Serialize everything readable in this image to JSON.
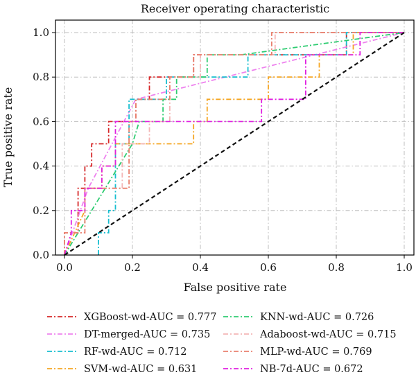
{
  "chart_data": {
    "type": "line",
    "title": "Receiver operating characteristic",
    "xlabel": "False positive rate",
    "ylabel": "True positive rate",
    "xlim": [
      0.0,
      1.0
    ],
    "ylim": [
      0.0,
      1.0
    ],
    "xticks": [
      "0.0",
      "0.2",
      "0.4",
      "0.6",
      "0.8",
      "1.0"
    ],
    "yticks": [
      "0.0",
      "0.2",
      "0.4",
      "0.6",
      "0.8",
      "1.0"
    ],
    "grid": true,
    "legend_position": "below",
    "reference_line": {
      "x": [
        0,
        1
      ],
      "y": [
        0,
        1
      ],
      "color": "#111111",
      "style": "dashed"
    },
    "series": [
      {
        "name": "XGBoost-wd-AUC = 0.777",
        "color": "#d62728",
        "x": [
          0,
          0,
          0.04,
          0.04,
          0.06,
          0.06,
          0.08,
          0.08,
          0.13,
          0.13,
          0.21,
          0.21,
          0.25,
          0.25,
          0.38,
          0.38,
          0.58,
          0.58,
          0.71,
          0.71,
          0.83,
          0.83,
          0.92,
          0.92,
          1.0
        ],
        "y": [
          0,
          0.1,
          0.1,
          0.3,
          0.3,
          0.4,
          0.4,
          0.5,
          0.5,
          0.6,
          0.6,
          0.7,
          0.7,
          0.8,
          0.8,
          0.9,
          0.9,
          0.9,
          0.9,
          0.9,
          0.9,
          1.0,
          1.0,
          1.0,
          1.0
        ]
      },
      {
        "name": "DT-merged-AUC = 0.735",
        "color": "#ee82ee",
        "x": [
          0,
          0.07,
          0.21,
          1.0
        ],
        "y": [
          0,
          0.3,
          0.7,
          1.0
        ]
      },
      {
        "name": "RF-wd-AUC = 0.712",
        "color": "#17becf",
        "x": [
          0.1,
          0.1,
          0.13,
          0.13,
          0.15,
          0.15,
          0.19,
          0.19,
          0.3,
          0.3,
          0.36,
          0.36,
          0.54,
          0.54,
          0.83,
          0.83,
          1.0
        ],
        "y": [
          0,
          0.1,
          0.1,
          0.2,
          0.2,
          0.5,
          0.5,
          0.7,
          0.7,
          0.8,
          0.8,
          0.8,
          0.8,
          0.9,
          0.9,
          1.0,
          1.0
        ]
      },
      {
        "name": "SVM-wd-AUC = 0.631",
        "color": "#f5a623",
        "x": [
          0,
          0.06,
          0.06,
          0.11,
          0.11,
          0.15,
          0.15,
          0.29,
          0.29,
          0.38,
          0.38,
          0.42,
          0.42,
          0.6,
          0.6,
          0.75,
          0.75,
          0.85,
          0.85,
          0.92,
          0.92,
          1.0
        ],
        "y": [
          0,
          0.2,
          0.3,
          0.3,
          0.4,
          0.4,
          0.5,
          0.5,
          0.5,
          0.5,
          0.6,
          0.6,
          0.7,
          0.7,
          0.8,
          0.8,
          0.9,
          0.9,
          1.0,
          1.0,
          1.0,
          1.0
        ]
      },
      {
        "name": "KNN-wd-AUC = 0.726",
        "color": "#2ecc71",
        "x": [
          0,
          0.2,
          0.22,
          0.29,
          0.29,
          0.33,
          0.33,
          0.42,
          0.42,
          0.52,
          1.0
        ],
        "y": [
          0,
          0.5,
          0.6,
          0.6,
          0.7,
          0.7,
          0.8,
          0.8,
          0.9,
          0.9,
          1.0
        ]
      },
      {
        "name": "Adaboost-wd-AUC = 0.715",
        "color": "#f4b6b6",
        "x": [
          0,
          0,
          0.06,
          0.06,
          0.17,
          0.17,
          0.25,
          0.25,
          0.31,
          0.31,
          0.4,
          0.4,
          0.62,
          0.62,
          1.0
        ],
        "y": [
          0,
          0.1,
          0.1,
          0.3,
          0.3,
          0.5,
          0.5,
          0.6,
          0.6,
          0.8,
          0.8,
          0.9,
          0.9,
          1.0,
          1.0
        ]
      },
      {
        "name": "MLP-wd-AUC = 0.769",
        "color": "#e9806e",
        "x": [
          0,
          0,
          0.06,
          0.06,
          0.19,
          0.19,
          0.21,
          0.21,
          0.31,
          0.31,
          0.38,
          0.38,
          0.61,
          0.61,
          1.0
        ],
        "y": [
          0,
          0.1,
          0.1,
          0.3,
          0.3,
          0.6,
          0.6,
          0.7,
          0.7,
          0.8,
          0.8,
          0.9,
          0.9,
          1.0,
          1.0
        ]
      },
      {
        "name": "NB-7d-AUC = 0.672",
        "color": "#e020e0",
        "x": [
          0,
          0.02,
          0.02,
          0.06,
          0.06,
          0.08,
          0.08,
          0.11,
          0.11,
          0.15,
          0.15,
          0.58,
          0.58,
          0.71,
          0.71,
          0.87,
          0.87,
          1.0
        ],
        "y": [
          0,
          0.1,
          0.2,
          0.2,
          0.3,
          0.3,
          0.3,
          0.3,
          0.4,
          0.4,
          0.6,
          0.6,
          0.7,
          0.7,
          0.9,
          0.9,
          1.0,
          1.0
        ]
      }
    ]
  }
}
